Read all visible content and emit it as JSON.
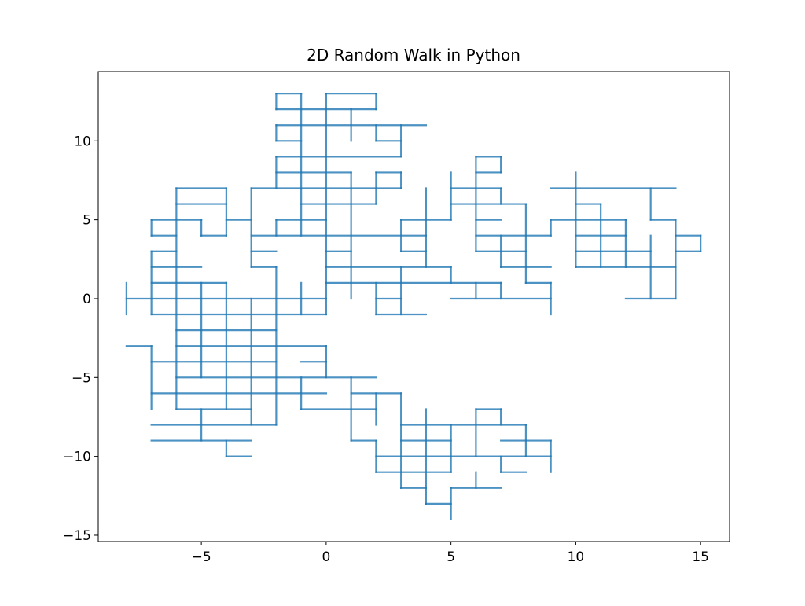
{
  "chart_data": {
    "type": "line",
    "title": "2D Random Walk in Python",
    "xlabel": "",
    "ylabel": "",
    "xlim": [
      -9.13,
      16.16
    ],
    "ylim": [
      -15.4,
      14.4
    ],
    "x_ticks": [
      -5,
      0,
      5,
      10,
      15
    ],
    "y_ticks": [
      -15,
      -10,
      -5,
      0,
      5,
      10
    ],
    "x_tick_labels": [
      "−5",
      "0",
      "5",
      "10",
      "15"
    ],
    "y_tick_labels": [
      "−15",
      "−10",
      "−5",
      "0",
      "5",
      "10"
    ],
    "grid": false,
    "legend": "none",
    "line_color": "#1f77b4",
    "line_alpha": 0.8,
    "horizontal_segments": [
      [
        13,
        -2,
        -1
      ],
      [
        13,
        0,
        2
      ],
      [
        12,
        -2,
        2
      ],
      [
        11,
        -2,
        4
      ],
      [
        10,
        -2,
        -1
      ],
      [
        10,
        2,
        3
      ],
      [
        9,
        -2,
        3
      ],
      [
        9,
        6,
        7
      ],
      [
        8,
        -2,
        1
      ],
      [
        8,
        2,
        3
      ],
      [
        8,
        6,
        7
      ],
      [
        7,
        -6,
        -4
      ],
      [
        7,
        -3,
        3
      ],
      [
        7,
        5,
        7
      ],
      [
        7,
        9,
        14
      ],
      [
        6,
        -6,
        -4
      ],
      [
        6,
        -1,
        2
      ],
      [
        6,
        5,
        8
      ],
      [
        6,
        10,
        11
      ],
      [
        5,
        -7,
        -5
      ],
      [
        5,
        -4,
        -3
      ],
      [
        5,
        -2,
        0
      ],
      [
        5,
        3,
        5
      ],
      [
        5,
        6,
        7
      ],
      [
        5,
        9,
        12
      ],
      [
        5,
        13,
        14
      ],
      [
        4,
        -7,
        -6
      ],
      [
        4,
        -5,
        -4
      ],
      [
        4,
        -3,
        4
      ],
      [
        4,
        6,
        9
      ],
      [
        4,
        10,
        12
      ],
      [
        4,
        14,
        15
      ],
      [
        3,
        -7,
        -6
      ],
      [
        3,
        -3,
        -2
      ],
      [
        3,
        0,
        1
      ],
      [
        3,
        3,
        4
      ],
      [
        3,
        6,
        8
      ],
      [
        3,
        10,
        13
      ],
      [
        3,
        14,
        15
      ],
      [
        2,
        -7,
        -5
      ],
      [
        2,
        -3,
        -2
      ],
      [
        2,
        0,
        5
      ],
      [
        2,
        7,
        9
      ],
      [
        2,
        10,
        14
      ],
      [
        1,
        -7,
        -4
      ],
      [
        1,
        0,
        7
      ],
      [
        1,
        8,
        9
      ],
      [
        0,
        -8,
        0
      ],
      [
        0,
        2,
        3
      ],
      [
        0,
        5,
        9
      ],
      [
        0,
        12,
        14
      ],
      [
        -1,
        -7,
        0
      ],
      [
        -1,
        2,
        4
      ],
      [
        -2,
        -6,
        -2
      ],
      [
        -3,
        -8,
        -7
      ],
      [
        -3,
        -6,
        0
      ],
      [
        -4,
        -7,
        -2
      ],
      [
        -4,
        -1,
        0
      ],
      [
        -5,
        -6,
        2
      ],
      [
        -6,
        -7,
        0
      ],
      [
        -6,
        1,
        3
      ],
      [
        -7,
        -6,
        -3
      ],
      [
        -7,
        -1,
        2
      ],
      [
        -7,
        6,
        7
      ],
      [
        -8,
        -7,
        -2
      ],
      [
        -8,
        3,
        8
      ],
      [
        -9,
        -7,
        -3
      ],
      [
        -9,
        1,
        2
      ],
      [
        -9,
        3,
        5
      ],
      [
        -9,
        7,
        9
      ],
      [
        -10,
        -4,
        -3
      ],
      [
        -10,
        2,
        9
      ],
      [
        -11,
        2,
        5
      ],
      [
        -11,
        7,
        8
      ],
      [
        -12,
        3,
        4
      ],
      [
        -12,
        5,
        7
      ],
      [
        -13,
        4,
        5
      ]
    ],
    "vertical_segments": [
      [
        -8,
        -1,
        1
      ],
      [
        -7,
        4,
        5
      ],
      [
        -7,
        -1,
        3
      ],
      [
        -7,
        -7,
        -3
      ],
      [
        -6,
        -7,
        7
      ],
      [
        -5,
        4,
        5
      ],
      [
        -5,
        -5,
        1
      ],
      [
        -5,
        -9,
        -7
      ],
      [
        -4,
        4,
        7
      ],
      [
        -4,
        -7,
        1
      ],
      [
        -4,
        -10,
        -9
      ],
      [
        -3,
        2,
        7
      ],
      [
        -3,
        -8,
        0
      ],
      [
        -2,
        12,
        13
      ],
      [
        -2,
        10,
        11
      ],
      [
        -2,
        7,
        9
      ],
      [
        -2,
        4,
        5
      ],
      [
        -2,
        -8,
        2
      ],
      [
        -1,
        4,
        13
      ],
      [
        -1,
        -1,
        1
      ],
      [
        -1,
        -7,
        -5
      ],
      [
        0,
        -1,
        13
      ],
      [
        0,
        -5,
        -3
      ],
      [
        1,
        10,
        12
      ],
      [
        1,
        0,
        8
      ],
      [
        1,
        -9,
        -5
      ],
      [
        2,
        12,
        13
      ],
      [
        2,
        10,
        11
      ],
      [
        2,
        6,
        8
      ],
      [
        2,
        -1,
        1
      ],
      [
        2,
        -8,
        -6
      ],
      [
        2,
        -11,
        -9
      ],
      [
        3,
        9,
        11
      ],
      [
        3,
        7,
        8
      ],
      [
        3,
        3,
        5
      ],
      [
        3,
        -1,
        2
      ],
      [
        3,
        -12,
        -6
      ],
      [
        4,
        2,
        7
      ],
      [
        4,
        -13,
        -7
      ],
      [
        5,
        5,
        8
      ],
      [
        5,
        1,
        2
      ],
      [
        5,
        -11,
        -8
      ],
      [
        5,
        -14,
        -12
      ],
      [
        6,
        3,
        9
      ],
      [
        6,
        0,
        1
      ],
      [
        6,
        -10,
        -7
      ],
      [
        6,
        -12,
        -11
      ],
      [
        7,
        8,
        9
      ],
      [
        7,
        6,
        7
      ],
      [
        7,
        2,
        4
      ],
      [
        7,
        0,
        1
      ],
      [
        7,
        -8,
        -7
      ],
      [
        7,
        -11,
        -10
      ],
      [
        8,
        1,
        6
      ],
      [
        8,
        -10,
        -8
      ],
      [
        9,
        4,
        5
      ],
      [
        9,
        -1,
        1
      ],
      [
        9,
        -11,
        -9
      ],
      [
        10,
        2,
        8
      ],
      [
        11,
        2,
        6
      ],
      [
        12,
        2,
        5
      ],
      [
        13,
        5,
        7
      ],
      [
        13,
        0,
        4
      ],
      [
        14,
        0,
        5
      ],
      [
        15,
        3,
        4
      ]
    ]
  }
}
